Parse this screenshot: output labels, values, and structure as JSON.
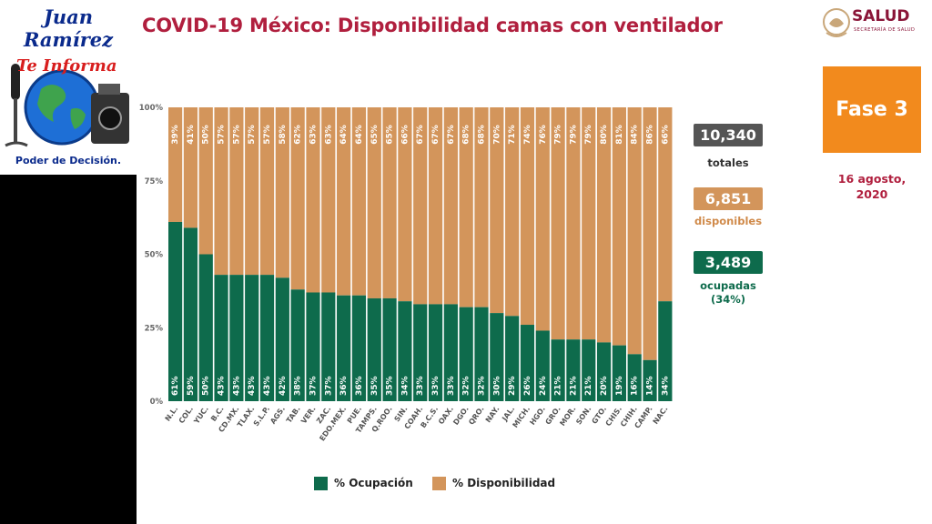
{
  "header": {
    "title": "COVID-19 México: Disponibilidad camas con ventilador",
    "ministry": "SALUD",
    "ministry_sub": "SECRETARÍA DE SALUD"
  },
  "channel_logo": {
    "line1": "Juan Ramírez",
    "line2": "Te Informa",
    "line3": "Poder de Decisión."
  },
  "sidebar": {
    "phase": "Fase 3",
    "date_line1": "16 agosto,",
    "date_line2": "2020"
  },
  "stats": {
    "total_value": "10,340",
    "total_label": "totales",
    "available_value": "6,851",
    "available_label": "disponibles",
    "occupied_value": "3,489",
    "occupied_label": "ocupadas",
    "occupied_pct": "(34%)"
  },
  "colors": {
    "occupied": "#0e6b4c",
    "available": "#d3955b",
    "title": "#b01f3e",
    "phase": "#f28a1d",
    "box_total": "#555555",
    "box_available": "#d3955b",
    "box_occupied": "#0e6b4c"
  },
  "chart_data": {
    "type": "bar",
    "stacked": true,
    "categories": [
      "N.L.",
      "COL.",
      "YUC.",
      "B.C.",
      "CD.MX.",
      "TLAX.",
      "S.L.P.",
      "AGS.",
      "TAB.",
      "VER.",
      "ZAC.",
      "EDO.MEX.",
      "PUE.",
      "TAMPS.",
      "Q.ROO.",
      "SIN.",
      "COAH.",
      "B.C.S.",
      "OAX.",
      "DGO.",
      "QRO.",
      "NAY.",
      "JAL.",
      "MICH.",
      "HGO.",
      "GRO.",
      "MOR.",
      "SON.",
      "GTO.",
      "CHIS.",
      "CHIH.",
      "CAMP.",
      "NAC."
    ],
    "series": [
      {
        "name": "% Ocupación",
        "values": [
          61,
          59,
          50,
          43,
          43,
          43,
          43,
          42,
          38,
          37,
          37,
          36,
          36,
          35,
          35,
          34,
          33,
          33,
          33,
          32,
          32,
          30,
          29,
          26,
          24,
          21,
          21,
          21,
          20,
          19,
          16,
          14,
          34
        ]
      },
      {
        "name": "% Disponibilidad",
        "values": [
          39,
          41,
          50,
          57,
          57,
          57,
          57,
          58,
          62,
          63,
          63,
          64,
          64,
          65,
          65,
          66,
          67,
          67,
          67,
          68,
          68,
          70,
          71,
          74,
          76,
          79,
          79,
          79,
          80,
          81,
          84,
          86,
          66
        ]
      }
    ],
    "yticks": [
      "0%",
      "25%",
      "50%",
      "75%",
      "100%"
    ],
    "ylim": [
      0,
      100
    ],
    "legend_position": "bottom"
  }
}
